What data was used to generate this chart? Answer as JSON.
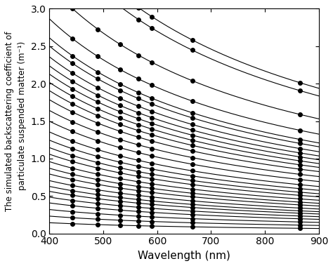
{
  "wavelengths": [
    443,
    490,
    531,
    565,
    590,
    665,
    865
  ],
  "ylabel": "The simulated backscattering coefficient of\n    particulate suspended matter (m⁻¹)",
  "xlabel": "Wavelength (nm)",
  "xlim": [
    400,
    900
  ],
  "ylim": [
    0.0,
    3.0
  ],
  "xticks": [
    400,
    500,
    600,
    700,
    800,
    900
  ],
  "yticks": [
    0.0,
    0.5,
    1.0,
    1.5,
    2.0,
    2.5,
    3.0
  ],
  "A_values": [
    3.8,
    3.6,
    3.0,
    2.6,
    2.37,
    2.27,
    2.14,
    2.03,
    1.93,
    1.83,
    1.73,
    1.62,
    1.49,
    1.36,
    1.23,
    1.13,
    1.04,
    0.96,
    0.87,
    0.79,
    0.72,
    0.64,
    0.57,
    0.51,
    0.44,
    0.37,
    0.29,
    0.21,
    0.13
  ],
  "n_values": [
    0.95,
    0.95,
    0.95,
    0.95,
    0.95,
    0.95,
    0.95,
    0.95,
    0.95,
    0.95,
    0.95,
    0.95,
    0.95,
    0.95,
    0.95,
    0.95,
    0.95,
    0.95,
    0.95,
    0.95,
    0.95,
    0.95,
    0.95,
    0.95,
    0.95,
    0.95,
    0.95,
    0.95,
    0.95
  ],
  "line_color": "#000000",
  "marker": "o",
  "marker_size": 4,
  "linewidth": 0.8,
  "background_color": "#ffffff",
  "figsize": [
    4.74,
    3.79
  ],
  "dpi": 100
}
